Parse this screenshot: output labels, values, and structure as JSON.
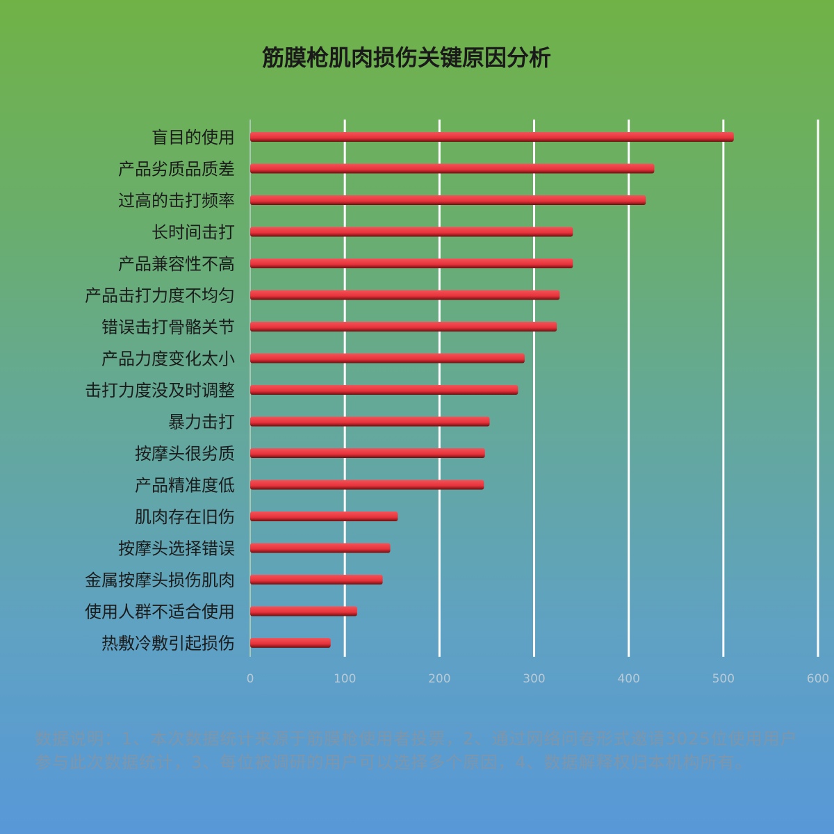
{
  "chart_data": {
    "type": "bar",
    "orientation": "horizontal",
    "title": "筋膜枪肌肉损伤关键原因分析",
    "categories": [
      "盲目的使用",
      "产品劣质品质差",
      "过高的击打频率",
      "长时间击打",
      "产品兼容性不高",
      "产品击打力度不均匀",
      "错误击打骨骼关节",
      "产品力度变化太小",
      "击打力度没及时调整",
      "暴力击打",
      "按摩头很劣质",
      "产品精准度低",
      "肌肉存在旧伤",
      "按摩头选择错误",
      "金属按摩头损伤肌肉",
      "使用人群不适合使用",
      "热敷冷敷引起损伤"
    ],
    "values": [
      511,
      427,
      418,
      341,
      341,
      327,
      324,
      290,
      283,
      253,
      248,
      247,
      156,
      148,
      140,
      113,
      85
    ],
    "xlim": [
      0,
      600
    ],
    "xticks": [
      "0",
      "100",
      "200",
      "300",
      "400",
      "500",
      "600"
    ],
    "grid": true,
    "bar_color": "#e8323a",
    "xlabel": "",
    "ylabel": ""
  },
  "footnote": "数据说明：1、本次数据统计来源于筋膜枪使用者投票，2、通过网络问卷形式邀请3025位使用用户参与此次数据统计，3、每位被调研的用户可以选择多个原因，4、数据解释权归本机构所有。"
}
